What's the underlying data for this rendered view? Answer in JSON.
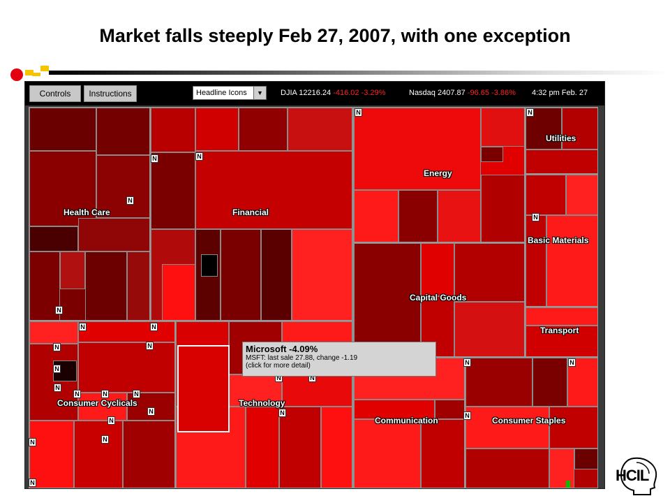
{
  "slide": {
    "title": "Market falls steeply Feb 27, 2007, with one exception",
    "logo_text": "HCIL"
  },
  "toolbar": {
    "controls_label": "Controls",
    "instructions_label": "Instructions",
    "view_select_value": "Headline Icons",
    "djia_label": "DJIA 12216.24",
    "djia_change": "-416.02 -3.29%",
    "nasdaq_label": "Nasdaq 2407.87",
    "nasdaq_change": "-96.65 -3.86%",
    "time_label": "4:32 pm  Feb. 27"
  },
  "sectors": {
    "health_care": "Health Care",
    "financial": "Financial",
    "energy": "Energy",
    "utilities": "Utilities",
    "basic_materials": "Basic Materials",
    "capital_goods": "Capital Goods",
    "transport": "Transport",
    "consumer_cyclicals": "Consumer Cyclicals",
    "technology": "Technology",
    "communication": "Communication",
    "consumer_staples": "Consumer Staples"
  },
  "news_badge": "N",
  "tooltip": {
    "title": "Microsoft -4.09%",
    "detail": "MSFT: last sale 27.88,  change -1.19",
    "hint": "(click for more detail)"
  },
  "colors": {
    "deep_red": "#6e0000",
    "mid_red": "#b00000",
    "bright_red": "#ff1a1a",
    "gain_green": "#00c000"
  }
}
